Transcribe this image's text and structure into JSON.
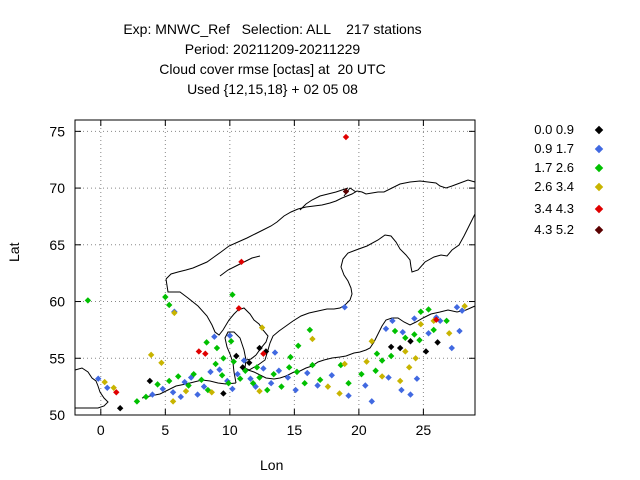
{
  "chart_data": {
    "type": "scatter",
    "title_lines": [
      "Exp: MNWC_Ref   Selection: ALL    217 stations",
      "Period: 20211209-20211229",
      "Cloud cover rmse [octas] at  20 UTC",
      "Used {12,15,18} + 02 05 08"
    ],
    "xlabel": "Lon",
    "ylabel": "Lat",
    "xlim": [
      -2,
      29
    ],
    "ylim": [
      50,
      76
    ],
    "xticks": [
      0,
      5,
      10,
      15,
      20,
      25
    ],
    "yticks": [
      50,
      55,
      60,
      65,
      70,
      75
    ],
    "grid": true,
    "legend_placement": "right",
    "series": [
      {
        "name": "0.0 0.9",
        "color": "#000000",
        "points": [
          [
            1.5,
            50.6
          ],
          [
            3.8,
            53.0
          ],
          [
            9.5,
            51.9
          ],
          [
            10.5,
            55.2
          ],
          [
            11.5,
            54.6
          ],
          [
            12.3,
            55.9
          ],
          [
            12.8,
            55.6
          ],
          [
            22.5,
            56.0
          ],
          [
            23.2,
            55.9
          ],
          [
            24.0,
            56.5
          ],
          [
            25.2,
            55.6
          ],
          [
            26.1,
            56.4
          ],
          [
            11.0,
            54.2
          ]
        ]
      },
      {
        "name": "0.9 1.7",
        "color": "#4169e1",
        "points": [
          [
            -0.2,
            53.2
          ],
          [
            0.5,
            52.4
          ],
          [
            4.0,
            51.8
          ],
          [
            4.8,
            52.3
          ],
          [
            5.6,
            52.0
          ],
          [
            6.2,
            51.6
          ],
          [
            6.5,
            52.9
          ],
          [
            7.0,
            53.3
          ],
          [
            7.5,
            51.8
          ],
          [
            8.0,
            52.5
          ],
          [
            8.5,
            53.8
          ],
          [
            9.2,
            54.0
          ],
          [
            9.8,
            53.0
          ],
          [
            10.2,
            52.3
          ],
          [
            10.6,
            53.6
          ],
          [
            11.1,
            54.8
          ],
          [
            11.6,
            53.2
          ],
          [
            12.0,
            52.5
          ],
          [
            12.6,
            54.1
          ],
          [
            13.2,
            52.8
          ],
          [
            13.8,
            53.9
          ],
          [
            14.5,
            53.3
          ],
          [
            15.1,
            52.2
          ],
          [
            16.0,
            53.7
          ],
          [
            16.8,
            52.6
          ],
          [
            17.9,
            53.5
          ],
          [
            19.2,
            51.7
          ],
          [
            20.5,
            52.6
          ],
          [
            21.0,
            51.2
          ],
          [
            22.3,
            53.3
          ],
          [
            23.3,
            52.2
          ],
          [
            24.0,
            51.8
          ],
          [
            24.5,
            53.2
          ],
          [
            22.1,
            57.6
          ],
          [
            22.6,
            58.3
          ],
          [
            23.4,
            57.3
          ],
          [
            24.3,
            58.5
          ],
          [
            25.4,
            57.2
          ],
          [
            26.0,
            58.6
          ],
          [
            26.3,
            58.3
          ],
          [
            27.2,
            55.9
          ],
          [
            27.8,
            57.4
          ],
          [
            28.0,
            59.2
          ],
          [
            27.6,
            59.5
          ],
          [
            18.9,
            59.5
          ],
          [
            5.7,
            59.1
          ],
          [
            13.5,
            55.5
          ],
          [
            8.8,
            56.9
          ],
          [
            10.0,
            57.0
          ]
        ]
      },
      {
        "name": "1.7 2.6",
        "color": "#00c000",
        "points": [
          [
            -1.0,
            60.1
          ],
          [
            5.0,
            60.4
          ],
          [
            5.3,
            59.7
          ],
          [
            2.8,
            51.2
          ],
          [
            3.5,
            51.6
          ],
          [
            4.4,
            52.7
          ],
          [
            5.3,
            53.0
          ],
          [
            6.0,
            53.4
          ],
          [
            6.8,
            52.6
          ],
          [
            7.2,
            53.6
          ],
          [
            7.8,
            53.1
          ],
          [
            8.3,
            52.2
          ],
          [
            8.9,
            54.5
          ],
          [
            9.4,
            53.5
          ],
          [
            9.9,
            52.8
          ],
          [
            10.3,
            54.7
          ],
          [
            10.8,
            53.2
          ],
          [
            11.2,
            53.9
          ],
          [
            11.8,
            52.8
          ],
          [
            12.3,
            53.3
          ],
          [
            12.9,
            52.2
          ],
          [
            13.4,
            53.6
          ],
          [
            14.0,
            52.5
          ],
          [
            14.6,
            54.2
          ],
          [
            15.2,
            53.8
          ],
          [
            15.8,
            52.8
          ],
          [
            16.4,
            54.4
          ],
          [
            17.0,
            53.1
          ],
          [
            18.6,
            54.4
          ],
          [
            19.2,
            52.8
          ],
          [
            20.2,
            53.6
          ],
          [
            21.3,
            53.9
          ],
          [
            21.8,
            54.8
          ],
          [
            21.4,
            55.4
          ],
          [
            22.5,
            55.2
          ],
          [
            22.8,
            57.4
          ],
          [
            23.6,
            56.8
          ],
          [
            24.3,
            57.1
          ],
          [
            24.7,
            56.6
          ],
          [
            25.8,
            57.5
          ],
          [
            26.8,
            58.3
          ],
          [
            24.8,
            59.1
          ],
          [
            25.4,
            59.3
          ],
          [
            10.2,
            60.6
          ],
          [
            10.1,
            56.5
          ],
          [
            9.0,
            55.9
          ],
          [
            8.2,
            56.4
          ],
          [
            9.5,
            55.0
          ],
          [
            12.1,
            54.2
          ],
          [
            14.7,
            55.1
          ],
          [
            15.3,
            56.1
          ],
          [
            16.2,
            57.5
          ]
        ]
      },
      {
        "name": "2.6 3.4",
        "color": "#c8b400",
        "points": [
          [
            0.3,
            52.9
          ],
          [
            1.0,
            52.4
          ],
          [
            3.9,
            55.3
          ],
          [
            4.7,
            54.6
          ],
          [
            5.6,
            51.2
          ],
          [
            6.6,
            52.1
          ],
          [
            8.6,
            52.0
          ],
          [
            12.3,
            52.1
          ],
          [
            17.6,
            52.5
          ],
          [
            18.5,
            51.9
          ],
          [
            18.9,
            54.5
          ],
          [
            20.6,
            54.7
          ],
          [
            21.8,
            53.4
          ],
          [
            23.2,
            53.0
          ],
          [
            23.9,
            54.2
          ],
          [
            21.0,
            56.5
          ],
          [
            23.6,
            55.6
          ],
          [
            24.4,
            55.0
          ],
          [
            24.8,
            58.0
          ],
          [
            25.8,
            58.3
          ],
          [
            27.0,
            57.2
          ],
          [
            28.2,
            59.6
          ],
          [
            5.7,
            59.0
          ],
          [
            12.5,
            57.7
          ],
          [
            16.4,
            56.7
          ]
        ]
      },
      {
        "name": "3.4 4.3",
        "color": "#e00000",
        "points": [
          [
            19.0,
            74.5
          ],
          [
            10.9,
            63.5
          ],
          [
            10.7,
            59.4
          ],
          [
            7.6,
            55.6
          ],
          [
            8.1,
            55.4
          ],
          [
            1.2,
            52.0
          ],
          [
            26.0,
            58.4
          ],
          [
            12.6,
            55.4
          ]
        ]
      },
      {
        "name": "4.3 5.2",
        "color": "#5a0000",
        "points": [
          [
            19.0,
            69.7
          ]
        ]
      }
    ]
  }
}
